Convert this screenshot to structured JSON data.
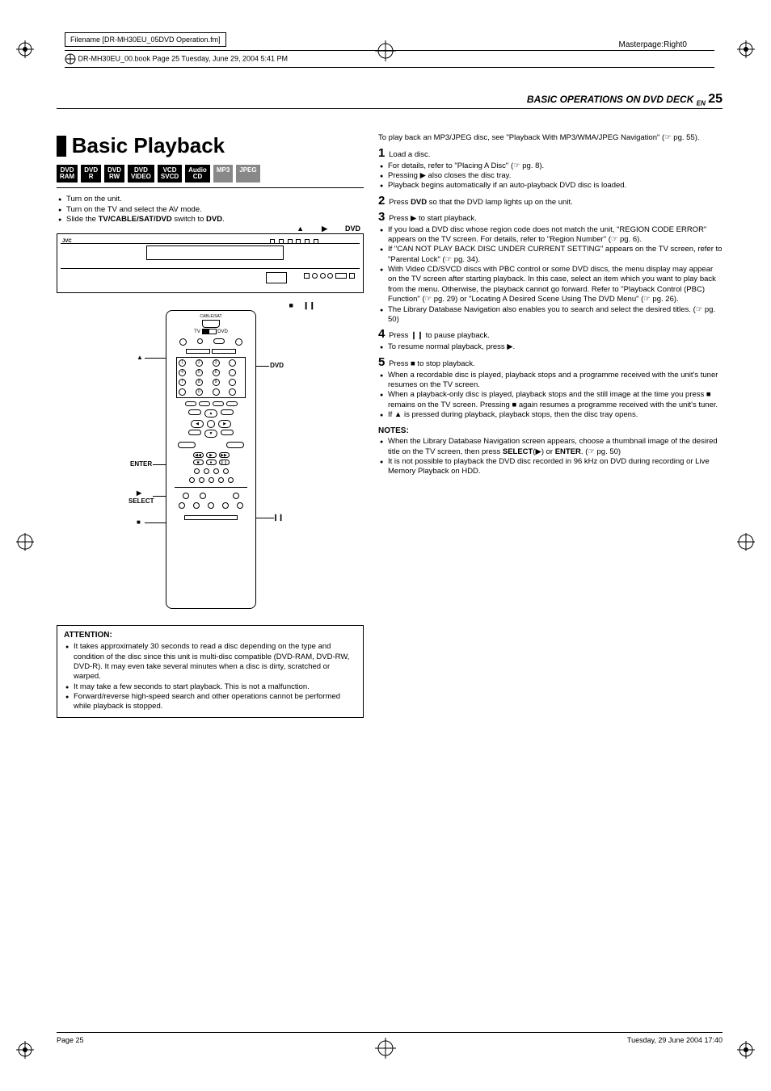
{
  "meta": {
    "filename_label": "Filename [DR-MH30EU_05DVD Operation.fm]",
    "bookline": "DR-MH30EU_00.book  Page 25  Tuesday, June 29, 2004  5:41 PM",
    "masterpage": "Masterpage:Right0",
    "footer_left": "Page 25",
    "footer_right": "Tuesday, 29 June 2004  17:40"
  },
  "header": {
    "section": "BASIC OPERATIONS ON DVD DECK",
    "en": "EN",
    "page": "25"
  },
  "title": "Basic Playback",
  "formats": [
    {
      "l1": "DVD",
      "l2": "RAM",
      "gray": false
    },
    {
      "l1": "DVD",
      "l2": "R",
      "gray": false
    },
    {
      "l1": "DVD",
      "l2": "RW",
      "gray": false
    },
    {
      "l1": "DVD",
      "l2": "VIDEO",
      "gray": false
    },
    {
      "l1": "VCD",
      "l2": "SVCD",
      "gray": false
    },
    {
      "l1": "Audio",
      "l2": "CD",
      "gray": false
    },
    {
      "l1": "MP3",
      "l2": "",
      "gray": true
    },
    {
      "l1": "JPEG",
      "l2": "",
      "gray": true
    }
  ],
  "setup_list": [
    "Turn on the unit.",
    "Turn on the TV and select the AV mode.",
    "Slide the TV/CABLE/SAT/DVD switch to DVD."
  ],
  "unit_labels": {
    "eject": "▲",
    "play": "▶",
    "dvd": "DVD",
    "stop": "■",
    "pause": "❙❙"
  },
  "remote": {
    "top_small": "CABLE/SAT",
    "tv": "TV",
    "dvd": "DVD",
    "dvd_side": "DVD",
    "eject": "▲",
    "enter": "ENTER",
    "select": "SELECT",
    "play": "▶",
    "stop": "■",
    "pause": "❙❙"
  },
  "attention": {
    "head": "ATTENTION:",
    "items": [
      "It takes approximately 30 seconds to read a disc depending on the type and condition of the disc since this unit is multi-disc compatible (DVD-RAM, DVD-RW, DVD-R). It may even take several minutes when a disc is dirty, scratched or warped.",
      "It may take a few seconds to start playback. This is not a malfunction.",
      "Forward/reverse high-speed search and other operations cannot be performed while playback is stopped."
    ]
  },
  "right": {
    "intro": "To play back an MP3/JPEG disc, see \"Playback With MP3/WMA/JPEG Navigation\" (☞ pg. 55).",
    "step1": {
      "num": "1",
      "text": "Load a disc."
    },
    "step1_subs": [
      "For details, refer to \"Placing A Disc\" (☞ pg. 8).",
      "Pressing ▶ also closes the disc tray.",
      "Playback begins automatically if an auto-playback DVD disc is loaded."
    ],
    "step2": {
      "num": "2",
      "text_a": "Press ",
      "text_b": "DVD",
      "text_c": " so that the DVD lamp lights up on the unit."
    },
    "step3": {
      "num": "3",
      "text": "Press ▶ to start playback."
    },
    "step3_subs": [
      "If you load a DVD disc whose region code does not match the unit, \"REGION CODE ERROR\" appears on the TV screen. For details, refer to \"Region Number\" (☞ pg. 6).",
      "If \"CAN NOT PLAY BACK DISC UNDER CURRENT SETTING\" appears on the TV screen, refer to \"Parental Lock\" (☞ pg. 34).",
      "With Video CD/SVCD discs with PBC control or some DVD discs, the menu display may appear on the TV screen after starting playback. In this case, select an item which you want to play back from the menu. Otherwise, the playback cannot go forward. Refer to \"Playback Control (PBC) Function\" (☞ pg. 29) or \"Locating A Desired Scene Using The DVD Menu\" (☞ pg. 26).",
      "The Library Database Navigation also enables you to search and select the desired titles. (☞ pg. 50)"
    ],
    "step4": {
      "num": "4",
      "text": "Press ❙❙ to pause playback."
    },
    "step4_subs": [
      "To resume normal playback, press ▶."
    ],
    "step5": {
      "num": "5",
      "text": "Press ■ to stop playback."
    },
    "step5_subs": [
      "When a recordable disc is played, playback stops and a programme received with the unit's tuner resumes on the TV screen.",
      "When a playback-only disc is played, playback stops and the still image at the time you press ■ remains on the TV screen. Pressing ■ again resumes a programme received with the unit's tuner.",
      "If ▲ is pressed during playback, playback stops, then the disc tray opens."
    ],
    "notes_head": "NOTES:",
    "notes": [
      "When the Library Database Navigation screen appears, choose a thumbnail image of the desired title on the TV screen, then press SELECT(▶) or ENTER. (☞ pg. 50)",
      "It is not possible to playback the DVD disc recorded in 96 kHz on DVD during recording or Live Memory Playback on HDD."
    ]
  }
}
